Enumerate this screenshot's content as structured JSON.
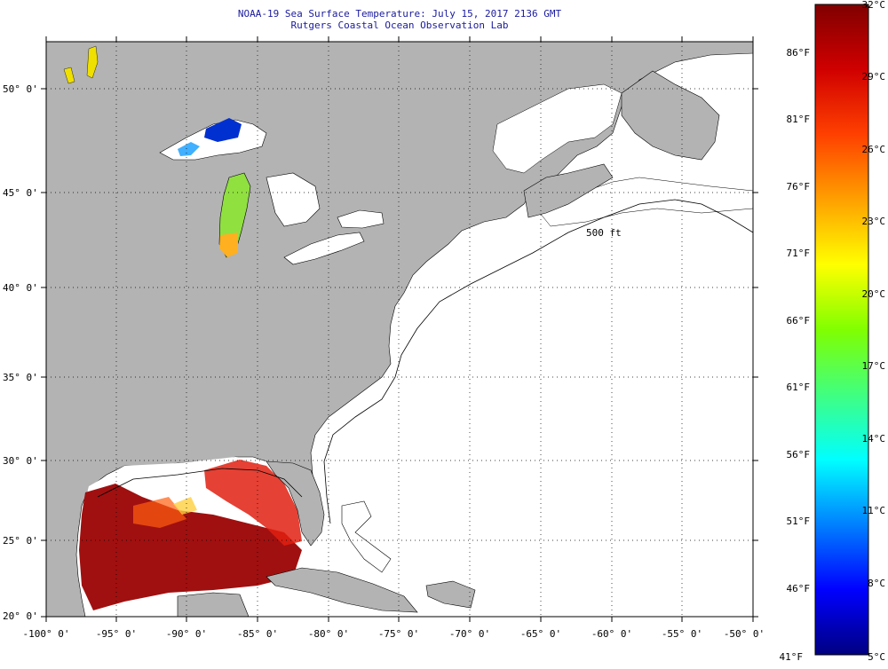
{
  "title": {
    "line1": "NOAA-19 Sea Surface Temperature:  July 15, 2017 2136 GMT",
    "line2": "Rutgers Coastal Ocean Observation Lab"
  },
  "map": {
    "lon_labels": [
      "-100° 0'",
      "-95° 0'",
      "-90° 0'",
      "-85° 0'",
      "-80° 0'",
      "-75° 0'",
      "-70° 0'",
      "-65° 0'",
      "-60° 0'",
      "-55° 0'",
      "-50° 0'"
    ],
    "lat_labels": [
      "50° 0'",
      "45° 0'",
      "40° 0'",
      "35° 0'",
      "30° 0'",
      "25° 0'",
      "20° 0'"
    ],
    "isobath_label": "500 ft",
    "colors": {
      "land": "#b3b3b3",
      "water_no_data": "#ffffff",
      "grid": "#000000"
    }
  },
  "colorbar": {
    "range_c": [
      5,
      32
    ],
    "range_f": [
      41,
      90
    ],
    "celsius_labels": [
      "32°C",
      "29°C",
      "26°C",
      "23°C",
      "20°C",
      "17°C",
      "14°C",
      "11°C",
      "8°C",
      "5°C"
    ],
    "fahrenheit_labels": [
      "86°F",
      "81°F",
      "76°F",
      "71°F",
      "66°F",
      "61°F",
      "56°F",
      "51°F",
      "46°F",
      "41°F"
    ],
    "gradient_colors": [
      "#000080",
      "#0000ff",
      "#0080ff",
      "#00ffff",
      "#40ff80",
      "#80ff00",
      "#ffff00",
      "#ffa000",
      "#ff4000",
      "#d00000",
      "#800000"
    ]
  }
}
